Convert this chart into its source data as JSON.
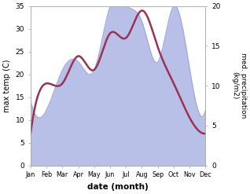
{
  "months": [
    "Jan",
    "Feb",
    "Mar",
    "Apr",
    "May",
    "Jun",
    "Jul",
    "Aug",
    "Sep",
    "Oct",
    "Nov",
    "Dec"
  ],
  "temp": [
    7,
    18,
    18,
    24,
    21,
    29,
    28,
    34,
    26,
    18,
    10.5,
    7
  ],
  "precip_kg": [
    8,
    7,
    12,
    13,
    12,
    20,
    20,
    18,
    13,
    20,
    12,
    7
  ],
  "temp_color": "#993355",
  "precip_fill_color": "#b8c0e8",
  "precip_line_color": "#9aa0d8",
  "temp_ylim": [
    0,
    35
  ],
  "precip_ylim": [
    0,
    20
  ],
  "precip_to_temp_scale": 1.75,
  "xlabel": "date (month)",
  "ylabel_left": "max temp (C)",
  "ylabel_right": "med. precipitation\n(kg/m2)",
  "temp_linewidth": 1.8,
  "yticks_left": [
    0,
    5,
    10,
    15,
    20,
    25,
    30,
    35
  ],
  "yticks_right": [
    0,
    5,
    10,
    15,
    20
  ]
}
